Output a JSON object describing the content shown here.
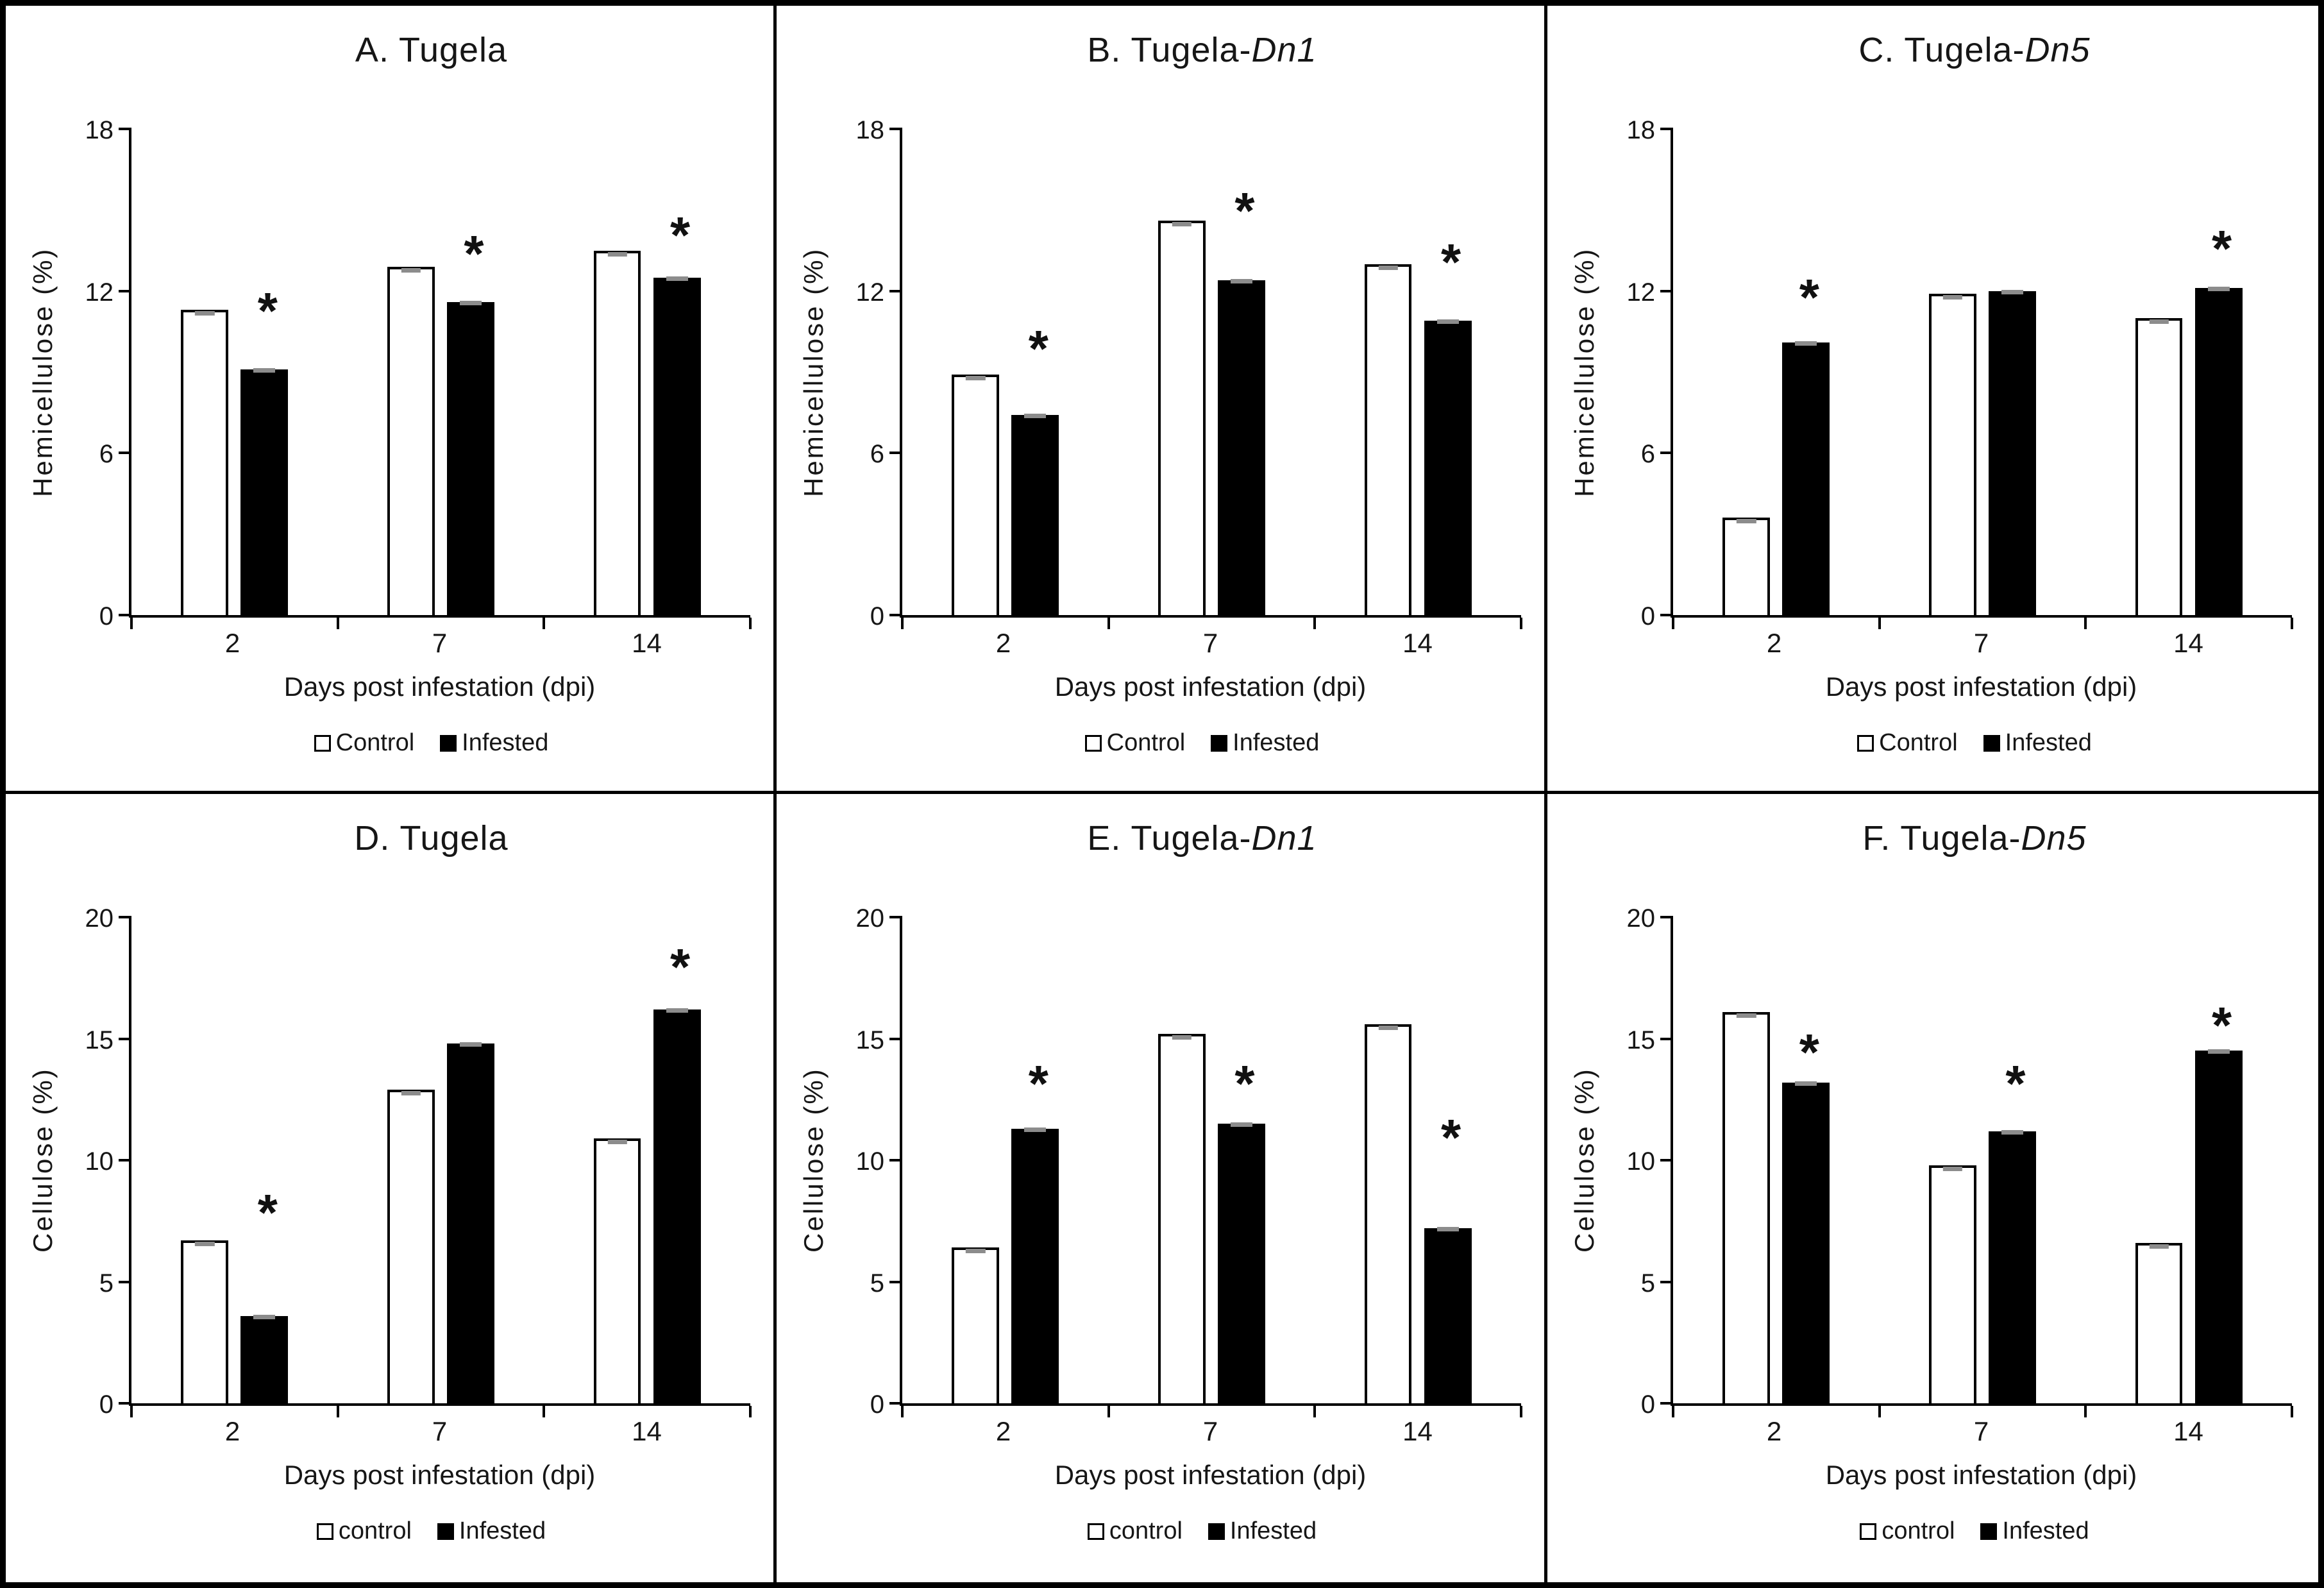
{
  "figure": {
    "significance_marker": "*",
    "colors": {
      "bar_control_fill": "#ffffff",
      "bar_infested_fill": "#000000",
      "bar_border": "#000000",
      "error_cap": "#8c8c8c",
      "frame": "#000000",
      "text": "#161616"
    }
  },
  "chart_data": [
    {
      "type": "bar",
      "title_prefix": "A. Tugela",
      "title_italic": "",
      "ylabel": "Hemicellulose (%)",
      "xlabel": "Days post infestation (dpi)",
      "categories": [
        "2",
        "7",
        "14"
      ],
      "yticks": [
        0,
        6,
        12,
        18
      ],
      "ylim": [
        0,
        18
      ],
      "series": [
        {
          "name": "Control",
          "values": [
            11.3,
            12.9,
            13.5
          ]
        },
        {
          "name": "Infested",
          "values": [
            9.1,
            11.6,
            12.5
          ]
        }
      ],
      "sig_y": [
        11.5,
        13.6,
        14.3
      ],
      "legend_position": "bottom",
      "grid": false
    },
    {
      "type": "bar",
      "title_prefix": "B. Tugela-",
      "title_italic": "Dn1",
      "ylabel": "Hemicellulose (%)",
      "xlabel": "Days post infestation (dpi)",
      "categories": [
        "2",
        "7",
        "14"
      ],
      "yticks": [
        0,
        6,
        12,
        18
      ],
      "ylim": [
        0,
        18
      ],
      "series": [
        {
          "name": "Control",
          "values": [
            8.9,
            14.6,
            13.0
          ]
        },
        {
          "name": "Infested",
          "values": [
            7.4,
            12.4,
            10.9
          ]
        }
      ],
      "sig_y": [
        10.1,
        15.2,
        13.3
      ],
      "legend_position": "bottom",
      "grid": false
    },
    {
      "type": "bar",
      "title_prefix": "C. Tugela-",
      "title_italic": "Dn5",
      "ylabel": "Hemicellulose (%)",
      "xlabel": "Days post infestation (dpi)",
      "categories": [
        "2",
        "7",
        "14"
      ],
      "yticks": [
        0,
        6,
        12,
        18
      ],
      "ylim": [
        0,
        18
      ],
      "series": [
        {
          "name": "Control",
          "values": [
            3.6,
            11.9,
            11.0
          ]
        },
        {
          "name": "Infested",
          "values": [
            10.1,
            12.0,
            12.1
          ]
        }
      ],
      "sig_y": [
        12.0,
        null,
        13.8
      ],
      "legend_position": "bottom",
      "grid": false
    },
    {
      "type": "bar",
      "title_prefix": "D. Tugela",
      "title_italic": "",
      "ylabel": "Cellulose (%)",
      "xlabel": "Days post infestation (dpi)",
      "categories": [
        "2",
        "7",
        "14"
      ],
      "yticks": [
        0,
        5,
        10,
        15,
        20
      ],
      "ylim": [
        0,
        20
      ],
      "series": [
        {
          "name": "control",
          "values": [
            6.7,
            12.9,
            10.9
          ]
        },
        {
          "name": "Infested",
          "values": [
            3.6,
            14.8,
            16.2
          ]
        }
      ],
      "sig_y": [
        8.1,
        null,
        18.2
      ],
      "legend_position": "bottom",
      "grid": false
    },
    {
      "type": "bar",
      "title_prefix": "E. Tugela-",
      "title_italic": "Dn1",
      "ylabel": "Cellulose (%)",
      "xlabel": "Days post infestation (dpi)",
      "categories": [
        "2",
        "7",
        "14"
      ],
      "yticks": [
        0,
        5,
        10,
        15,
        20
      ],
      "ylim": [
        0,
        20
      ],
      "series": [
        {
          "name": "control",
          "values": [
            6.4,
            15.2,
            15.6
          ]
        },
        {
          "name": "Infested",
          "values": [
            11.3,
            11.5,
            7.2
          ]
        }
      ],
      "sig_y": [
        13.4,
        13.4,
        11.2
      ],
      "legend_position": "bottom",
      "grid": false
    },
    {
      "type": "bar",
      "title_prefix": "F. Tugela-",
      "title_italic": "Dn5",
      "ylabel": "Cellulose (%)",
      "xlabel": "Days post infestation (dpi)",
      "categories": [
        "2",
        "7",
        "14"
      ],
      "yticks": [
        0,
        5,
        10,
        15,
        20
      ],
      "ylim": [
        0,
        20
      ],
      "series": [
        {
          "name": "control",
          "values": [
            16.1,
            9.8,
            6.6
          ]
        },
        {
          "name": "Infested",
          "values": [
            13.2,
            11.2,
            14.5
          ]
        }
      ],
      "sig_y": [
        14.7,
        13.4,
        15.8
      ],
      "legend_position": "bottom",
      "grid": false
    }
  ]
}
